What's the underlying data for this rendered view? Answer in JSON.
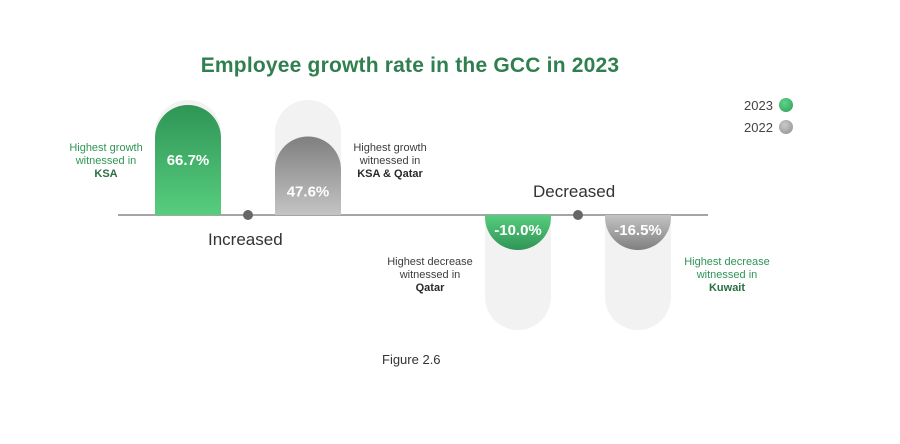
{
  "figure_caption": "Figure 2.6",
  "colors": {
    "title": "#2f7f4f",
    "series_2023": "#3aaa62",
    "series_2022": "#9a9a9a",
    "track": "#f2f2f2"
  },
  "chart_data": {
    "type": "bar",
    "title": "Employee growth rate in the GCC in 2023",
    "xlabel": "",
    "ylabel": "",
    "grid": false,
    "legend": "top-right",
    "series": [
      {
        "name": "2023",
        "color": "#3aaa62"
      },
      {
        "name": "2022",
        "color": "#9a9a9a"
      }
    ],
    "bars": [
      {
        "series": "2023",
        "group": "increased",
        "value": 66.7,
        "label": "66.7%"
      },
      {
        "series": "2022",
        "group": "increased",
        "value": 47.6,
        "label": "47.6%"
      },
      {
        "series": "2023",
        "group": "decreased",
        "value": -10.0,
        "label": "-10.0%"
      },
      {
        "series": "2022",
        "group": "decreased",
        "value": -16.5,
        "label": "-16.5%"
      }
    ],
    "sections": {
      "increased": "Increased",
      "decreased": "Decreased"
    },
    "annotations": [
      {
        "line1": "Highest growth",
        "line2": "witnessed in",
        "country": "KSA"
      },
      {
        "line1": "Highest growth",
        "line2": "witnessed in",
        "country": "KSA & Qatar"
      },
      {
        "line1": "Highest decrease",
        "line2": "witnessed in",
        "country": "Qatar"
      },
      {
        "line1": "Highest decrease",
        "line2": "witnessed in",
        "country": "Kuwait"
      }
    ]
  }
}
